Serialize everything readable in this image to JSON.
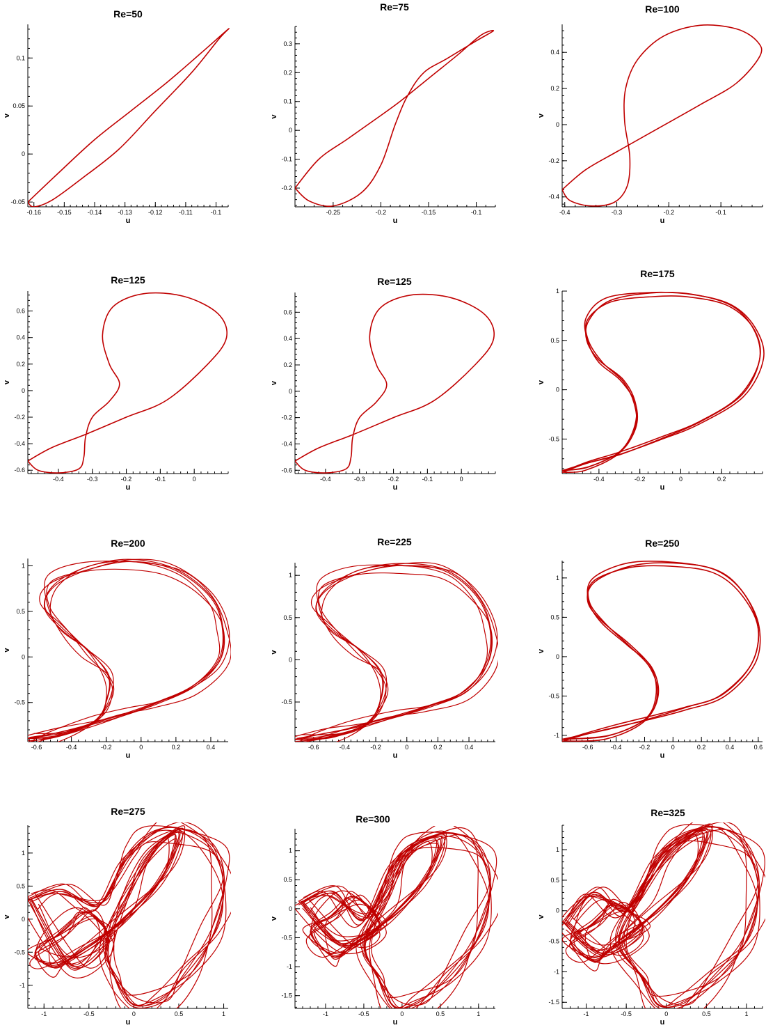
{
  "colors": {
    "trace": "#c00000",
    "axis": "#000000",
    "background": "#ffffff"
  },
  "chart_data": [
    {
      "type": "line",
      "title": "Re=50",
      "xlabel": "u",
      "ylabel": "v",
      "xlim": [
        -0.162,
        -0.096
      ],
      "ylim": [
        -0.055,
        0.135
      ],
      "xticks": [
        -0.16,
        -0.15,
        -0.14,
        -0.13,
        -0.12,
        -0.11,
        -0.1
      ],
      "xtick_labels": [
        "-0.16",
        "-0.15",
        "-0.14",
        "-0.13",
        "-0.12",
        "-0.11",
        "-0.1"
      ],
      "yticks": [
        -0.05,
        0,
        0.05,
        0.1
      ],
      "ytick_labels": [
        "-0.05",
        "0",
        "0.05",
        "0.1"
      ],
      "series": [
        {
          "loops": 1,
          "x": [
            -0.162,
            -0.152,
            -0.14,
            -0.128,
            -0.116,
            -0.105,
            -0.096,
            -0.099,
            -0.108,
            -0.12,
            -0.132,
            -0.144,
            -0.154,
            -0.16,
            -0.162
          ],
          "y": [
            -0.05,
            -0.02,
            0.015,
            0.045,
            0.075,
            0.105,
            0.13,
            0.12,
            0.085,
            0.045,
            0.005,
            -0.025,
            -0.048,
            -0.055,
            -0.05
          ]
        }
      ]
    },
    {
      "type": "line",
      "title": "Re=75",
      "xlabel": "u",
      "ylabel": "v",
      "xlim": [
        -0.29,
        -0.08
      ],
      "ylim": [
        -0.265,
        0.36
      ],
      "xticks": [
        -0.25,
        -0.2,
        -0.15,
        -0.1
      ],
      "xtick_labels": [
        "-0.25",
        "-0.2",
        "-0.15",
        "-0.1"
      ],
      "yticks": [
        -0.2,
        -0.1,
        0,
        0.1,
        0.2,
        0.3
      ],
      "ytick_labels": [
        "-0.2",
        "-0.1",
        "0",
        "0.1",
        "0.2",
        "0.3"
      ],
      "series": [
        {
          "loops": 1,
          "x": [
            -0.29,
            -0.265,
            -0.235,
            -0.205,
            -0.18,
            -0.15,
            -0.12,
            -0.095,
            -0.082,
            -0.1,
            -0.13,
            -0.155,
            -0.172,
            -0.185,
            -0.2,
            -0.22,
            -0.25,
            -0.275,
            -0.29
          ],
          "y": [
            -0.2,
            -0.1,
            -0.03,
            0.04,
            0.1,
            0.18,
            0.26,
            0.33,
            0.345,
            0.31,
            0.25,
            0.2,
            0.12,
            0.02,
            -0.12,
            -0.215,
            -0.262,
            -0.245,
            -0.2
          ]
        }
      ]
    },
    {
      "type": "line",
      "title": "Re=100",
      "xlabel": "u",
      "ylabel": "v",
      "xlim": [
        -0.405,
        -0.02
      ],
      "ylim": [
        -0.455,
        0.555
      ],
      "xticks": [
        -0.4,
        -0.3,
        -0.2,
        -0.1
      ],
      "xtick_labels": [
        "-0.4",
        "-0.3",
        "-0.2",
        "-0.1"
      ],
      "yticks": [
        -0.4,
        -0.2,
        0,
        0.2,
        0.4
      ],
      "ytick_labels": [
        "-0.4",
        "-0.2",
        "0",
        "0.2",
        "0.4"
      ],
      "series": [
        {
          "loops": 1,
          "x": [
            -0.405,
            -0.36,
            -0.3,
            -0.22,
            -0.14,
            -0.07,
            -0.025,
            -0.03,
            -0.07,
            -0.14,
            -0.21,
            -0.26,
            -0.283,
            -0.285,
            -0.275,
            -0.28,
            -0.305,
            -0.35,
            -0.39,
            -0.405
          ],
          "y": [
            -0.36,
            -0.25,
            -0.15,
            -0.02,
            0.11,
            0.23,
            0.38,
            0.46,
            0.53,
            0.55,
            0.49,
            0.36,
            0.2,
            0.02,
            -0.18,
            -0.34,
            -0.43,
            -0.45,
            -0.42,
            -0.36
          ]
        }
      ]
    },
    {
      "type": "line",
      "title": "Re=125",
      "xlabel": "u",
      "ylabel": "v",
      "xlim": [
        -0.49,
        0.1
      ],
      "ylim": [
        -0.625,
        0.75
      ],
      "xticks": [
        -0.4,
        -0.3,
        -0.2,
        -0.1,
        0
      ],
      "xtick_labels": [
        "-0.4",
        "-0.3",
        "-0.2",
        "-0.1",
        "0"
      ],
      "yticks": [
        -0.6,
        -0.4,
        -0.2,
        0,
        0.2,
        0.4,
        0.6
      ],
      "ytick_labels": [
        "-0.6",
        "-0.4",
        "-0.2",
        "0",
        "0.2",
        "0.4",
        "0.6"
      ],
      "series": [
        {
          "loops": 1,
          "x": [
            -0.49,
            -0.42,
            -0.32,
            -0.2,
            -0.08,
            0.04,
            0.095,
            0.07,
            -0.03,
            -0.15,
            -0.24,
            -0.27,
            -0.25,
            -0.22,
            -0.25,
            -0.3,
            -0.32,
            -0.325,
            -0.34,
            -0.4,
            -0.46,
            -0.49
          ],
          "y": [
            -0.53,
            -0.43,
            -0.33,
            -0.2,
            -0.07,
            0.2,
            0.4,
            0.58,
            0.71,
            0.73,
            0.63,
            0.42,
            0.2,
            0.05,
            -0.08,
            -0.2,
            -0.35,
            -0.5,
            -0.59,
            -0.62,
            -0.6,
            -0.53
          ]
        }
      ]
    },
    {
      "type": "line",
      "title": "Re=125",
      "xlabel": "u",
      "ylabel": "v",
      "xlim": [
        -0.49,
        0.1
      ],
      "ylim": [
        -0.625,
        0.75
      ],
      "xticks": [
        -0.4,
        -0.3,
        -0.2,
        -0.1,
        0
      ],
      "xtick_labels": [
        "-0.4",
        "-0.3",
        "-0.2",
        "-0.1",
        "0"
      ],
      "yticks": [
        -0.6,
        -0.4,
        -0.2,
        0,
        0.2,
        0.4,
        0.6
      ],
      "ytick_labels": [
        "-0.6",
        "-0.4",
        "-0.2",
        "0",
        "0.2",
        "0.4",
        "0.6"
      ],
      "series": [
        {
          "loops": 1,
          "x": [
            -0.49,
            -0.42,
            -0.32,
            -0.2,
            -0.08,
            0.04,
            0.095,
            0.07,
            -0.03,
            -0.15,
            -0.24,
            -0.27,
            -0.25,
            -0.22,
            -0.25,
            -0.3,
            -0.32,
            -0.325,
            -0.34,
            -0.4,
            -0.46,
            -0.49
          ],
          "y": [
            -0.53,
            -0.43,
            -0.33,
            -0.2,
            -0.07,
            0.2,
            0.4,
            0.58,
            0.71,
            0.73,
            0.63,
            0.42,
            0.2,
            0.05,
            -0.08,
            -0.2,
            -0.35,
            -0.5,
            -0.59,
            -0.62,
            -0.6,
            -0.53
          ]
        }
      ]
    },
    {
      "type": "line",
      "title": "Re=175",
      "xlabel": "u",
      "ylabel": "v",
      "xlim": [
        -0.58,
        0.4
      ],
      "ylim": [
        -0.85,
        1.0
      ],
      "xticks": [
        -0.4,
        -0.2,
        0,
        0.2
      ],
      "xtick_labels": [
        "-0.4",
        "-0.2",
        "0",
        "0.2"
      ],
      "yticks": [
        -0.5,
        0,
        0.5,
        1
      ],
      "ytick_labels": [
        "-0.5",
        "0",
        "0.5",
        "1"
      ],
      "series": [
        {
          "loops": 3,
          "x": [
            -0.58,
            -0.45,
            -0.3,
            -0.1,
            0.1,
            0.3,
            0.385,
            0.36,
            0.25,
            0.05,
            -0.15,
            -0.35,
            -0.45,
            -0.46,
            -0.4,
            -0.28,
            -0.22,
            -0.23,
            -0.3,
            -0.45,
            -0.58
          ],
          "y": [
            -0.82,
            -0.74,
            -0.66,
            -0.5,
            -0.32,
            -0.05,
            0.3,
            0.6,
            0.85,
            0.97,
            0.98,
            0.9,
            0.7,
            0.5,
            0.3,
            0.1,
            -0.15,
            -0.4,
            -0.63,
            -0.78,
            -0.82
          ]
        }
      ]
    },
    {
      "type": "line",
      "title": "Re=200",
      "xlabel": "u",
      "ylabel": "v",
      "xlim": [
        -0.65,
        0.5
      ],
      "ylim": [
        -0.93,
        1.08
      ],
      "xticks": [
        -0.6,
        -0.4,
        -0.2,
        0,
        0.2,
        0.4
      ],
      "xtick_labels": [
        "-0.6",
        "-0.4",
        "-0.2",
        "0",
        "0.2",
        "0.4"
      ],
      "yticks": [
        -0.5,
        0,
        0.5,
        1
      ],
      "ytick_labels": [
        "-0.5",
        "0",
        "0.5",
        "1"
      ],
      "series": [
        {
          "loops": 6,
          "x": [
            -0.65,
            -0.5,
            -0.3,
            -0.1,
            0.1,
            0.3,
            0.45,
            0.47,
            0.4,
            0.2,
            -0.05,
            -0.3,
            -0.5,
            -0.55,
            -0.45,
            -0.3,
            -0.19,
            -0.19,
            -0.26,
            -0.45,
            -0.65
          ],
          "y": [
            -0.9,
            -0.84,
            -0.74,
            -0.63,
            -0.5,
            -0.33,
            -0.05,
            0.3,
            0.65,
            0.95,
            1.05,
            0.98,
            0.8,
            0.55,
            0.3,
            0.05,
            -0.2,
            -0.45,
            -0.7,
            -0.85,
            -0.9
          ]
        }
      ]
    },
    {
      "type": "line",
      "title": "Re=225",
      "xlabel": "u",
      "ylabel": "v",
      "xlim": [
        -0.72,
        0.57
      ],
      "ylim": [
        -0.97,
        1.15
      ],
      "xticks": [
        -0.6,
        -0.4,
        -0.2,
        0,
        0.2,
        0.4
      ],
      "xtick_labels": [
        "-0.6",
        "-0.4",
        "-0.2",
        "0",
        "0.2",
        "0.4"
      ],
      "yticks": [
        -0.5,
        0,
        0.5,
        1
      ],
      "ytick_labels": [
        "-0.5",
        "0",
        "0.5",
        "1"
      ],
      "series": [
        {
          "loops": 6,
          "x": [
            -0.72,
            -0.55,
            -0.35,
            -0.1,
            0.15,
            0.38,
            0.52,
            0.54,
            0.45,
            0.25,
            -0.02,
            -0.3,
            -0.52,
            -0.58,
            -0.48,
            -0.3,
            -0.17,
            -0.16,
            -0.25,
            -0.45,
            -0.72
          ],
          "y": [
            -0.95,
            -0.88,
            -0.8,
            -0.68,
            -0.55,
            -0.38,
            -0.05,
            0.35,
            0.75,
            1.05,
            1.12,
            1.05,
            0.85,
            0.6,
            0.35,
            0.1,
            -0.15,
            -0.45,
            -0.75,
            -0.9,
            -0.95
          ]
        }
      ]
    },
    {
      "type": "line",
      "title": "Re=250",
      "xlabel": "u",
      "ylabel": "v",
      "xlim": [
        -0.78,
        0.63
      ],
      "ylim": [
        -1.08,
        1.22
      ],
      "xticks": [
        -0.6,
        -0.4,
        -0.2,
        0,
        0.2,
        0.4,
        0.6
      ],
      "xtick_labels": [
        "-0.6",
        "-0.4",
        "-0.2",
        "0",
        "0.2",
        "0.4",
        "0.6"
      ],
      "yticks": [
        -1,
        -0.5,
        0,
        0.5,
        1
      ],
      "ytick_labels": [
        "-1",
        "-0.5",
        "0",
        "0.5",
        "1"
      ],
      "series": [
        {
          "loops": 3,
          "x": [
            -0.78,
            -0.6,
            -0.4,
            -0.15,
            0.1,
            0.35,
            0.55,
            0.6,
            0.5,
            0.3,
            0.0,
            -0.3,
            -0.55,
            -0.6,
            -0.5,
            -0.3,
            -0.15,
            -0.12,
            -0.2,
            -0.45,
            -0.78
          ],
          "y": [
            -1.05,
            -0.98,
            -0.9,
            -0.78,
            -0.64,
            -0.48,
            -0.1,
            0.35,
            0.8,
            1.1,
            1.19,
            1.15,
            0.95,
            0.7,
            0.45,
            0.15,
            -0.15,
            -0.5,
            -0.8,
            -1.0,
            -1.05
          ]
        }
      ]
    },
    {
      "type": "line",
      "title": "Re=275",
      "xlabel": "u",
      "ylabel": "v",
      "xlim": [
        -1.18,
        1.05
      ],
      "ylim": [
        -1.35,
        1.42
      ],
      "xticks": [
        -1,
        -0.5,
        0,
        0.5,
        1
      ],
      "xtick_labels": [
        "-1",
        "-0.5",
        "0",
        "0.5",
        "1"
      ],
      "yticks": [
        -1,
        -0.5,
        0,
        0.5,
        1
      ],
      "ytick_labels": [
        "-1",
        "-0.5",
        "0",
        "0.5",
        "1"
      ],
      "series": [
        {
          "loops": 9,
          "x": [
            -1.15,
            -0.8,
            -0.4,
            -0.1,
            0.2,
            0.5,
            0.85,
            1.0,
            0.9,
            0.6,
            0.3,
            0.0,
            -0.2,
            -0.3,
            -0.1,
            0.2,
            0.5,
            0.3,
            -0.2,
            -0.6,
            -0.9,
            -1.1,
            -0.8,
            -0.5,
            -0.3,
            -0.7,
            -1.15
          ],
          "y": [
            0.3,
            0.45,
            0.2,
            0.9,
            1.3,
            1.38,
            1.1,
            0.5,
            -0.2,
            -0.8,
            -1.2,
            -1.3,
            -0.9,
            -0.4,
            0.3,
            1.0,
            1.3,
            0.6,
            -0.1,
            -0.5,
            -0.7,
            -0.5,
            -0.2,
            0.1,
            -0.3,
            -0.7,
            0.3
          ]
        }
      ]
    },
    {
      "type": "line",
      "title": "Re=300",
      "xlabel": "u",
      "ylabel": "v",
      "xlim": [
        -1.4,
        1.22
      ],
      "ylim": [
        -1.72,
        1.38
      ],
      "xticks": [
        -1,
        -0.5,
        0,
        0.5,
        1
      ],
      "xtick_labels": [
        "-1",
        "-0.5",
        "0",
        "0.5",
        "1"
      ],
      "yticks": [
        -1.5,
        -1,
        -0.5,
        0,
        0.5,
        1
      ],
      "ytick_labels": [
        "-1.5",
        "-1",
        "-0.5",
        "0",
        "0.5",
        "1"
      ],
      "series": [
        {
          "loops": 9,
          "x": [
            -1.3,
            -0.9,
            -0.5,
            -0.1,
            0.3,
            0.7,
            1.0,
            1.15,
            1.0,
            0.6,
            0.2,
            -0.1,
            -0.3,
            -0.5,
            -0.2,
            0.1,
            0.5,
            0.3,
            -0.2,
            -0.6,
            -0.9,
            -1.2,
            -0.9,
            -0.6,
            -0.3,
            -0.8,
            -1.3
          ],
          "y": [
            0.1,
            0.3,
            -0.2,
            0.8,
            1.2,
            1.3,
            1.0,
            0.3,
            -0.5,
            -1.2,
            -1.6,
            -1.7,
            -1.2,
            -0.6,
            0.2,
            1.0,
            1.2,
            0.5,
            -0.2,
            -0.6,
            -0.8,
            -0.4,
            -0.1,
            0.2,
            -0.3,
            -0.6,
            0.1
          ]
        }
      ]
    },
    {
      "type": "line",
      "title": "Re=325",
      "xlabel": "u",
      "ylabel": "v",
      "xlim": [
        -1.3,
        1.2
      ],
      "ylim": [
        -1.6,
        1.4
      ],
      "xticks": [
        -1,
        -0.5,
        0,
        0.5,
        1
      ],
      "xtick_labels": [
        "-1",
        "-0.5",
        "0",
        "0.5",
        "1"
      ],
      "yticks": [
        -1.5,
        -1,
        -0.5,
        0,
        0.5,
        1
      ],
      "ytick_labels": [
        "-1.5",
        "-1",
        "-0.5",
        "0",
        "0.5",
        "1"
      ],
      "series": [
        {
          "loops": 9,
          "x": [
            -1.25,
            -0.9,
            -0.5,
            -0.1,
            0.3,
            0.7,
            1.0,
            1.15,
            1.0,
            0.6,
            0.2,
            -0.1,
            -0.3,
            -0.6,
            -0.3,
            0.1,
            0.5,
            0.3,
            -0.2,
            -0.6,
            -0.9,
            -1.2,
            -0.9,
            -0.6,
            -0.3,
            -0.8,
            -1.25
          ],
          "y": [
            -0.2,
            0.3,
            0.0,
            0.9,
            1.3,
            1.35,
            1.0,
            0.3,
            -0.5,
            -1.1,
            -1.5,
            -1.55,
            -1.1,
            -0.5,
            0.3,
            1.0,
            1.3,
            0.6,
            -0.1,
            -0.5,
            -0.8,
            -0.5,
            -0.2,
            0.1,
            -0.3,
            -0.7,
            -0.2
          ]
        }
      ]
    }
  ]
}
